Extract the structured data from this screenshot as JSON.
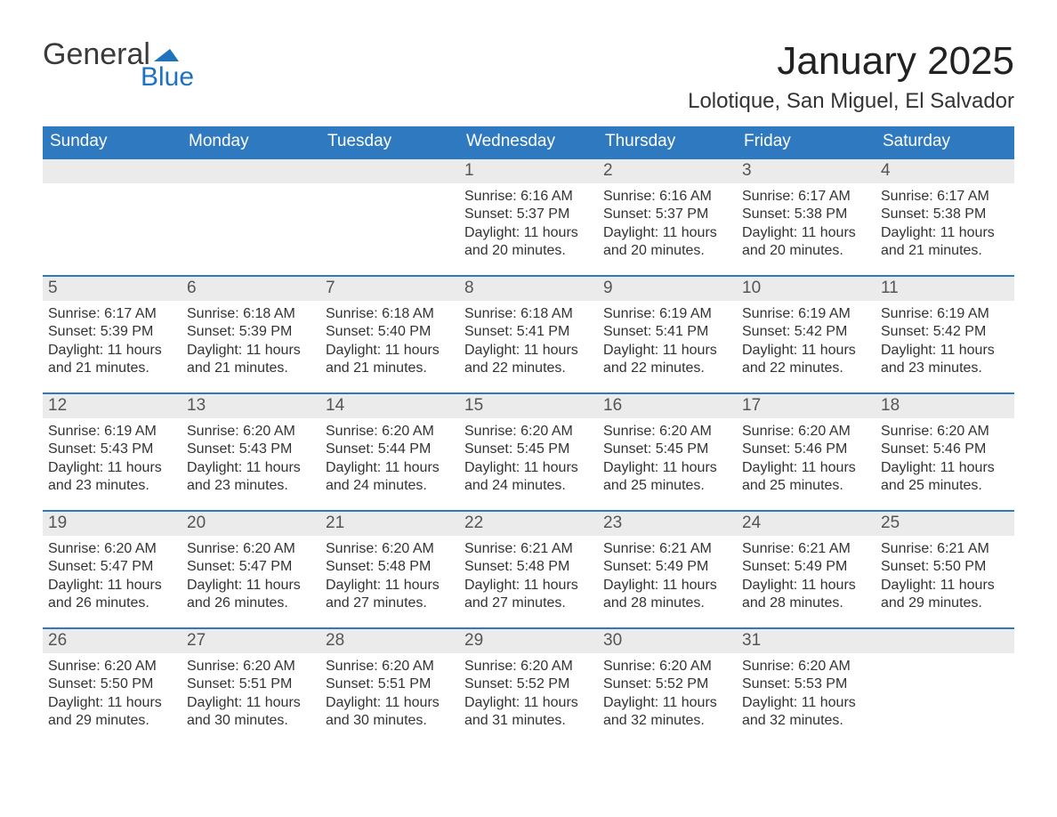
{
  "logo": {
    "word1": "General",
    "word2": "Blue",
    "text_color": "#3a3a3a",
    "accent_color": "#1e73be"
  },
  "header": {
    "month_title": "January 2025",
    "location": "Lolotique, San Miguel, El Salvador"
  },
  "colors": {
    "header_blue": "#2e79c0",
    "accent_blue": "#1e73be",
    "light_gray": "#ebebeb",
    "text": "#333333"
  },
  "column_headers": [
    "Sunday",
    "Monday",
    "Tuesday",
    "Wednesday",
    "Thursday",
    "Friday",
    "Saturday"
  ],
  "weeks": [
    [
      {
        "day": "",
        "sunrise": "",
        "sunset": "",
        "daylight1": "",
        "daylight2": ""
      },
      {
        "day": "",
        "sunrise": "",
        "sunset": "",
        "daylight1": "",
        "daylight2": ""
      },
      {
        "day": "",
        "sunrise": "",
        "sunset": "",
        "daylight1": "",
        "daylight2": ""
      },
      {
        "day": "1",
        "sunrise": "Sunrise: 6:16 AM",
        "sunset": "Sunset: 5:37 PM",
        "daylight1": "Daylight: 11 hours",
        "daylight2": "and 20 minutes."
      },
      {
        "day": "2",
        "sunrise": "Sunrise: 6:16 AM",
        "sunset": "Sunset: 5:37 PM",
        "daylight1": "Daylight: 11 hours",
        "daylight2": "and 20 minutes."
      },
      {
        "day": "3",
        "sunrise": "Sunrise: 6:17 AM",
        "sunset": "Sunset: 5:38 PM",
        "daylight1": "Daylight: 11 hours",
        "daylight2": "and 20 minutes."
      },
      {
        "day": "4",
        "sunrise": "Sunrise: 6:17 AM",
        "sunset": "Sunset: 5:38 PM",
        "daylight1": "Daylight: 11 hours",
        "daylight2": "and 21 minutes."
      }
    ],
    [
      {
        "day": "5",
        "sunrise": "Sunrise: 6:17 AM",
        "sunset": "Sunset: 5:39 PM",
        "daylight1": "Daylight: 11 hours",
        "daylight2": "and 21 minutes."
      },
      {
        "day": "6",
        "sunrise": "Sunrise: 6:18 AM",
        "sunset": "Sunset: 5:39 PM",
        "daylight1": "Daylight: 11 hours",
        "daylight2": "and 21 minutes."
      },
      {
        "day": "7",
        "sunrise": "Sunrise: 6:18 AM",
        "sunset": "Sunset: 5:40 PM",
        "daylight1": "Daylight: 11 hours",
        "daylight2": "and 21 minutes."
      },
      {
        "day": "8",
        "sunrise": "Sunrise: 6:18 AM",
        "sunset": "Sunset: 5:41 PM",
        "daylight1": "Daylight: 11 hours",
        "daylight2": "and 22 minutes."
      },
      {
        "day": "9",
        "sunrise": "Sunrise: 6:19 AM",
        "sunset": "Sunset: 5:41 PM",
        "daylight1": "Daylight: 11 hours",
        "daylight2": "and 22 minutes."
      },
      {
        "day": "10",
        "sunrise": "Sunrise: 6:19 AM",
        "sunset": "Sunset: 5:42 PM",
        "daylight1": "Daylight: 11 hours",
        "daylight2": "and 22 minutes."
      },
      {
        "day": "11",
        "sunrise": "Sunrise: 6:19 AM",
        "sunset": "Sunset: 5:42 PM",
        "daylight1": "Daylight: 11 hours",
        "daylight2": "and 23 minutes."
      }
    ],
    [
      {
        "day": "12",
        "sunrise": "Sunrise: 6:19 AM",
        "sunset": "Sunset: 5:43 PM",
        "daylight1": "Daylight: 11 hours",
        "daylight2": "and 23 minutes."
      },
      {
        "day": "13",
        "sunrise": "Sunrise: 6:20 AM",
        "sunset": "Sunset: 5:43 PM",
        "daylight1": "Daylight: 11 hours",
        "daylight2": "and 23 minutes."
      },
      {
        "day": "14",
        "sunrise": "Sunrise: 6:20 AM",
        "sunset": "Sunset: 5:44 PM",
        "daylight1": "Daylight: 11 hours",
        "daylight2": "and 24 minutes."
      },
      {
        "day": "15",
        "sunrise": "Sunrise: 6:20 AM",
        "sunset": "Sunset: 5:45 PM",
        "daylight1": "Daylight: 11 hours",
        "daylight2": "and 24 minutes."
      },
      {
        "day": "16",
        "sunrise": "Sunrise: 6:20 AM",
        "sunset": "Sunset: 5:45 PM",
        "daylight1": "Daylight: 11 hours",
        "daylight2": "and 25 minutes."
      },
      {
        "day": "17",
        "sunrise": "Sunrise: 6:20 AM",
        "sunset": "Sunset: 5:46 PM",
        "daylight1": "Daylight: 11 hours",
        "daylight2": "and 25 minutes."
      },
      {
        "day": "18",
        "sunrise": "Sunrise: 6:20 AM",
        "sunset": "Sunset: 5:46 PM",
        "daylight1": "Daylight: 11 hours",
        "daylight2": "and 25 minutes."
      }
    ],
    [
      {
        "day": "19",
        "sunrise": "Sunrise: 6:20 AM",
        "sunset": "Sunset: 5:47 PM",
        "daylight1": "Daylight: 11 hours",
        "daylight2": "and 26 minutes."
      },
      {
        "day": "20",
        "sunrise": "Sunrise: 6:20 AM",
        "sunset": "Sunset: 5:47 PM",
        "daylight1": "Daylight: 11 hours",
        "daylight2": "and 26 minutes."
      },
      {
        "day": "21",
        "sunrise": "Sunrise: 6:20 AM",
        "sunset": "Sunset: 5:48 PM",
        "daylight1": "Daylight: 11 hours",
        "daylight2": "and 27 minutes."
      },
      {
        "day": "22",
        "sunrise": "Sunrise: 6:21 AM",
        "sunset": "Sunset: 5:48 PM",
        "daylight1": "Daylight: 11 hours",
        "daylight2": "and 27 minutes."
      },
      {
        "day": "23",
        "sunrise": "Sunrise: 6:21 AM",
        "sunset": "Sunset: 5:49 PM",
        "daylight1": "Daylight: 11 hours",
        "daylight2": "and 28 minutes."
      },
      {
        "day": "24",
        "sunrise": "Sunrise: 6:21 AM",
        "sunset": "Sunset: 5:49 PM",
        "daylight1": "Daylight: 11 hours",
        "daylight2": "and 28 minutes."
      },
      {
        "day": "25",
        "sunrise": "Sunrise: 6:21 AM",
        "sunset": "Sunset: 5:50 PM",
        "daylight1": "Daylight: 11 hours",
        "daylight2": "and 29 minutes."
      }
    ],
    [
      {
        "day": "26",
        "sunrise": "Sunrise: 6:20 AM",
        "sunset": "Sunset: 5:50 PM",
        "daylight1": "Daylight: 11 hours",
        "daylight2": "and 29 minutes."
      },
      {
        "day": "27",
        "sunrise": "Sunrise: 6:20 AM",
        "sunset": "Sunset: 5:51 PM",
        "daylight1": "Daylight: 11 hours",
        "daylight2": "and 30 minutes."
      },
      {
        "day": "28",
        "sunrise": "Sunrise: 6:20 AM",
        "sunset": "Sunset: 5:51 PM",
        "daylight1": "Daylight: 11 hours",
        "daylight2": "and 30 minutes."
      },
      {
        "day": "29",
        "sunrise": "Sunrise: 6:20 AM",
        "sunset": "Sunset: 5:52 PM",
        "daylight1": "Daylight: 11 hours",
        "daylight2": "and 31 minutes."
      },
      {
        "day": "30",
        "sunrise": "Sunrise: 6:20 AM",
        "sunset": "Sunset: 5:52 PM",
        "daylight1": "Daylight: 11 hours",
        "daylight2": "and 32 minutes."
      },
      {
        "day": "31",
        "sunrise": "Sunrise: 6:20 AM",
        "sunset": "Sunset: 5:53 PM",
        "daylight1": "Daylight: 11 hours",
        "daylight2": "and 32 minutes."
      },
      {
        "day": "",
        "sunrise": "",
        "sunset": "",
        "daylight1": "",
        "daylight2": ""
      }
    ]
  ]
}
